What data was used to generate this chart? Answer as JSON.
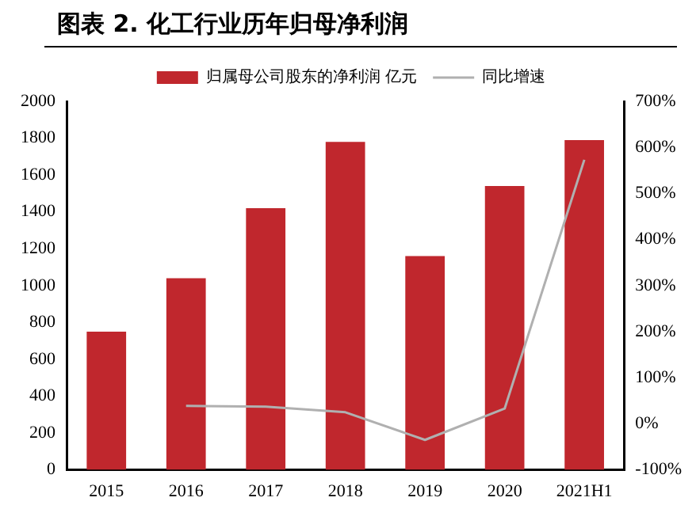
{
  "chart_data": {
    "type": "bar",
    "title": "图表 2.  化工行业历年归母净利润",
    "categories": [
      "2015",
      "2016",
      "2017",
      "2018",
      "2019",
      "2020",
      "2021H1"
    ],
    "series": [
      {
        "name": "归属母公司股东的净利润 亿元",
        "color": "#c0272d",
        "values": [
          750,
          1040,
          1420,
          1780,
          1160,
          1540,
          1790
        ]
      },
      {
        "name": "同比增速",
        "type": "line",
        "axis": "y2",
        "color": "#b0b0b0",
        "values": [
          null,
          39,
          37,
          25,
          -35,
          33,
          573
        ]
      }
    ],
    "ylim": [
      0,
      2000
    ],
    "yticks": [
      0,
      200,
      400,
      600,
      800,
      1000,
      1200,
      1400,
      1600,
      1800,
      2000
    ],
    "y2lim": [
      -100,
      700
    ],
    "y2ticks": [
      {
        "value": -100,
        "label": "-100%"
      },
      {
        "value": 0,
        "label": "0%"
      },
      {
        "value": 100,
        "label": "100%"
      },
      {
        "value": 200,
        "label": "200%"
      },
      {
        "value": 300,
        "label": "300%"
      },
      {
        "value": 400,
        "label": "400%"
      },
      {
        "value": 500,
        "label": "500%"
      },
      {
        "value": 600,
        "label": "600%"
      },
      {
        "value": 700,
        "label": "700%"
      }
    ],
    "grid": false,
    "legend": "top",
    "marker": "none",
    "line_style": "solid"
  }
}
